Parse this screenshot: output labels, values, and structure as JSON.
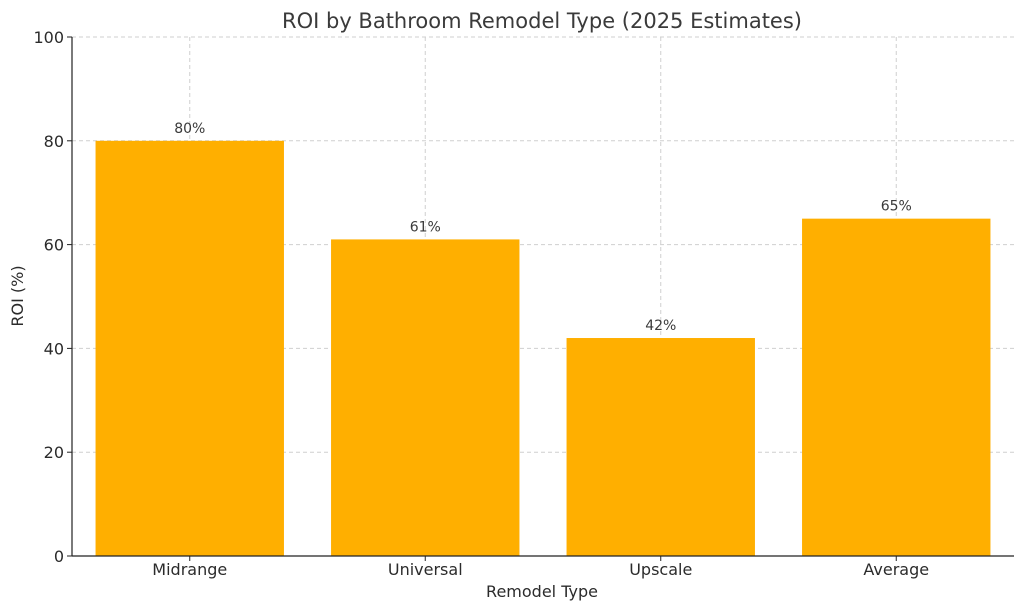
{
  "chart_data": {
    "type": "bar",
    "title": "ROI by Bathroom Remodel Type (2025 Estimates)",
    "xlabel": "Remodel Type",
    "ylabel": "ROI (%)",
    "categories": [
      "Midrange",
      "Universal",
      "Upscale",
      "Average"
    ],
    "values": [
      80,
      61,
      42,
      65
    ],
    "data_labels": [
      "80%",
      "61%",
      "42%",
      "65%"
    ],
    "ylim": [
      0,
      100
    ],
    "yticks": [
      0,
      20,
      40,
      60,
      80,
      100
    ],
    "grid": true,
    "bar_color": "#FFAF00"
  }
}
